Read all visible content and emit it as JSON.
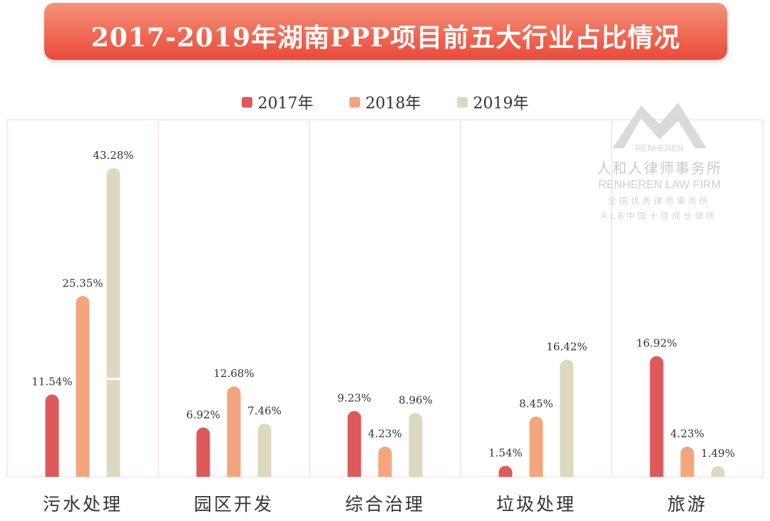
{
  "title": "2017-2019年湖南PPP项目前五大行业占比情况",
  "watermark": {
    "logo_text": "RENHEREN",
    "cn_name": "人和人律师事务所",
    "en_name": "RENHEREN LAW FIRM",
    "line1": "全国优秀律师事务所",
    "line2": "ALB中国十佳成长律所"
  },
  "colors": {
    "s2017": "#de5a5a",
    "s2018": "#f4a57e",
    "s2019": "#dcd9bf",
    "banner": "#ef6a55",
    "grid": "#f2d5d5"
  },
  "chart_data": {
    "type": "bar",
    "title": "2017-2019年湖南PPP项目前五大行业占比情况",
    "categories": [
      "污水处理",
      "园区开发",
      "综合治理",
      "垃圾处理",
      "旅游"
    ],
    "series": [
      {
        "name": "2017年",
        "values": [
          11.54,
          6.92,
          9.23,
          1.54,
          16.92
        ],
        "labels": [
          "11.54%",
          "6.92%",
          "9.23%",
          "1.54%",
          "16.92%"
        ]
      },
      {
        "name": "2018年",
        "values": [
          25.35,
          12.68,
          4.23,
          8.45,
          4.23
        ],
        "labels": [
          "25.35%",
          "12.68%",
          "4.23%",
          "8.45%",
          "4.23%"
        ]
      },
      {
        "name": "2019年",
        "values": [
          43.28,
          7.46,
          8.96,
          16.42,
          1.49
        ],
        "labels": [
          "43.28%",
          "7.46%",
          "8.96%",
          "16.42%",
          "1.49%"
        ]
      }
    ],
    "ylim": [
      0,
      45
    ],
    "xlabel": "",
    "ylabel": "",
    "legend": "top-center"
  }
}
